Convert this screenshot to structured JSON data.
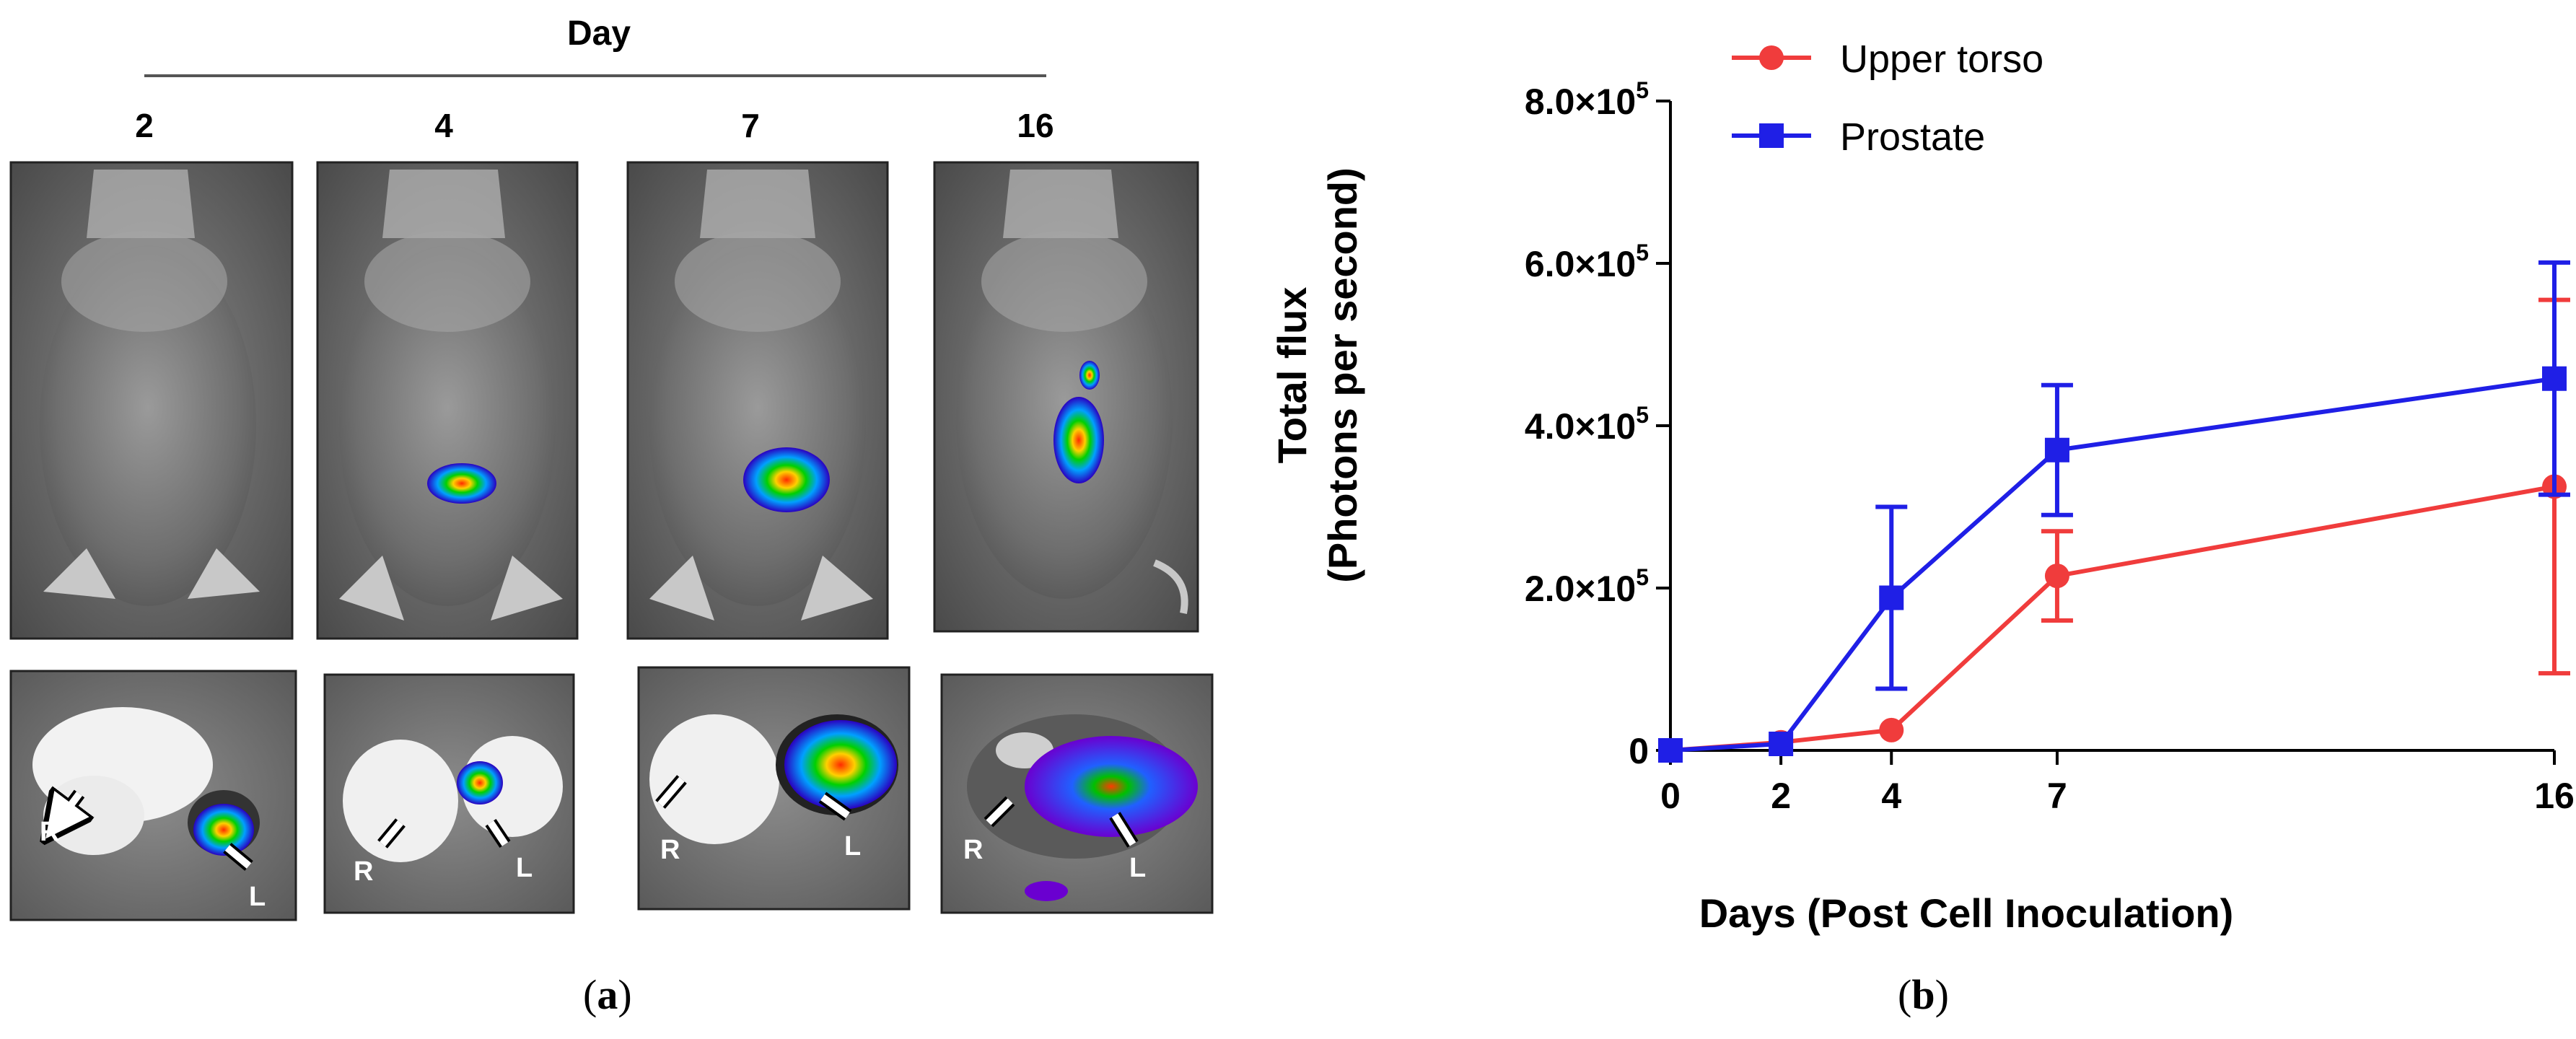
{
  "panel_a": {
    "header": "Day",
    "days": [
      "2",
      "4",
      "7",
      "16"
    ],
    "side_label_right": "R",
    "side_label_left": "L",
    "caption": "a"
  },
  "panel_b": {
    "caption": "b"
  },
  "chart_data": {
    "type": "line",
    "xlabel": "Days (Post Cell Inoculation)",
    "ylabel_line1": "Total flux",
    "ylabel_line2": "(Photons per second)",
    "x_ticks": [
      "0",
      "2",
      "4",
      "7",
      "16"
    ],
    "y_ticks": [
      {
        "value": 0,
        "mant": "0",
        "exp": ""
      },
      {
        "value": 200000,
        "mant": "2.0×10",
        "exp": "5"
      },
      {
        "value": 400000,
        "mant": "4.0×10",
        "exp": "5"
      },
      {
        "value": 600000,
        "mant": "6.0×10",
        "exp": "5"
      },
      {
        "value": 800000,
        "mant": "8.0×10",
        "exp": "5"
      }
    ],
    "xlim": [
      0,
      16
    ],
    "ylim": [
      0,
      800000
    ],
    "grid": false,
    "legend_position": "top-left",
    "series": [
      {
        "name": "Upper torso",
        "color": "#f03c3c",
        "marker": "circle",
        "points": [
          {
            "x": 0,
            "y": 0,
            "err": 0
          },
          {
            "x": 2,
            "y": 10000,
            "err": 0
          },
          {
            "x": 4,
            "y": 25000,
            "err": 0
          },
          {
            "x": 7,
            "y": 215000,
            "err": 55000
          },
          {
            "x": 16,
            "y": 325000,
            "err": 230000
          }
        ]
      },
      {
        "name": "Prostate",
        "color": "#1f1fe6",
        "marker": "square",
        "points": [
          {
            "x": 0,
            "y": 0,
            "err": 0
          },
          {
            "x": 2,
            "y": 8000,
            "err": 0
          },
          {
            "x": 4,
            "y": 188000,
            "err": 112000
          },
          {
            "x": 7,
            "y": 370000,
            "err": 80000
          },
          {
            "x": 16,
            "y": 458000,
            "err": 143000
          }
        ]
      }
    ]
  }
}
